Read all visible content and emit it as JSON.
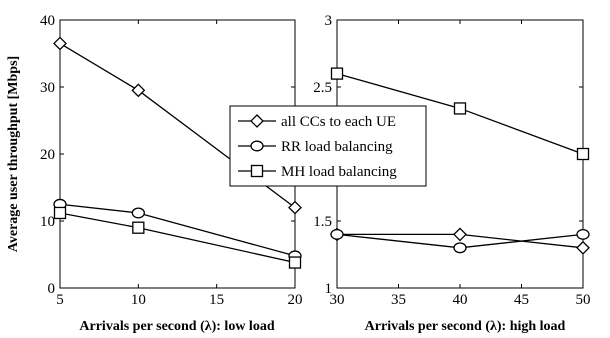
{
  "chart_data": [
    {
      "type": "line",
      "title": "",
      "xlabel": "Arrivals per second (λ): low load",
      "ylabel": "Average user throughput [Mbps]",
      "x": [
        5,
        10,
        20
      ],
      "xlim": [
        5,
        20
      ],
      "ylim": [
        0,
        40
      ],
      "xticks": [
        "5",
        "10",
        "15",
        "20"
      ],
      "yticks": [
        "0",
        "10",
        "20",
        "30",
        "40"
      ],
      "grid": false,
      "series": [
        {
          "name": "all CCs to each UE",
          "marker": "diamond",
          "values": [
            36.5,
            29.5,
            12.0
          ]
        },
        {
          "name": "RR load balancing",
          "marker": "circle",
          "values": [
            12.5,
            11.2,
            4.8
          ]
        },
        {
          "name": "MH load balancing",
          "marker": "square",
          "values": [
            11.2,
            9.0,
            3.8
          ]
        }
      ]
    },
    {
      "type": "line",
      "title": "",
      "xlabel": "Arrivals per second (λ): high load",
      "ylabel": "",
      "x": [
        30,
        40,
        50
      ],
      "xlim": [
        30,
        50
      ],
      "ylim": [
        1,
        3
      ],
      "xticks": [
        "30",
        "35",
        "40",
        "45",
        "50"
      ],
      "yticks": [
        "1",
        "1.5",
        "2",
        "2.5",
        "3"
      ],
      "grid": false,
      "series": [
        {
          "name": "all CCs to each UE",
          "marker": "diamond",
          "values": [
            1.4,
            1.4,
            1.3
          ]
        },
        {
          "name": "RR load balancing",
          "marker": "circle",
          "values": [
            1.4,
            1.3,
            1.4
          ]
        },
        {
          "name": "MH load balancing",
          "marker": "square",
          "values": [
            2.6,
            2.34,
            2.0
          ]
        }
      ]
    }
  ],
  "legend": {
    "position": "center",
    "entries": [
      "all CCs to each UE",
      "RR load balancing",
      "MH load balancing"
    ]
  }
}
